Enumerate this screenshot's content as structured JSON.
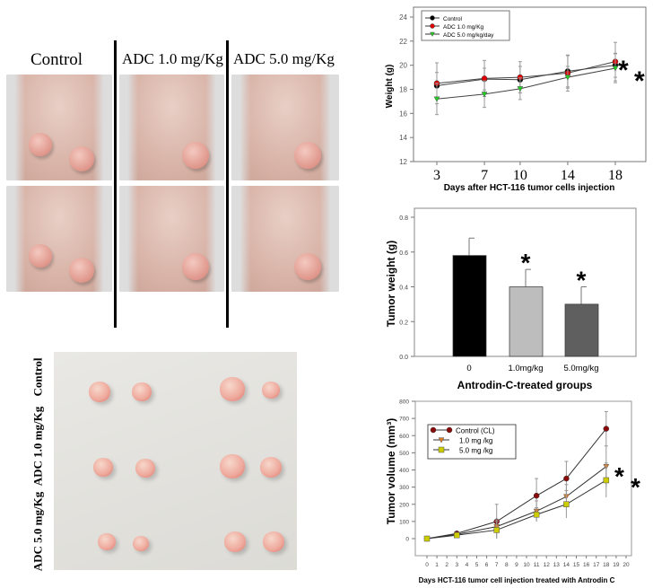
{
  "mouse_photos": {
    "columns": [
      "Control",
      "ADC 1.0 mg/Kg",
      "ADC 5.0 mg/Kg"
    ]
  },
  "tumor_photo": {
    "row_labels": [
      "Control",
      "ADC 1.0 mg/Kg",
      "ADC 5.0 mg/Kg"
    ]
  },
  "chart_data": [
    {
      "type": "line",
      "xlabel": "Days after HCT-116 tumor cells injection",
      "ylabel": "Weight  (g)",
      "x": [
        3,
        7,
        10,
        14,
        18
      ],
      "ylim": [
        12,
        24
      ],
      "yticks": [
        12,
        14,
        16,
        18,
        20,
        22,
        24
      ],
      "legend": "top-left",
      "annotations": [
        "*",
        "*"
      ],
      "series": [
        {
          "name": "Control",
          "color": "#000000",
          "marker": "circle",
          "values": [
            18.3,
            18.85,
            18.8,
            19.5,
            20.0
          ],
          "errors": [
            1.1,
            0.9,
            1.1,
            1.3,
            1.0
          ]
        },
        {
          "name": "ADC 1.0 mg/Kg",
          "color": "#e00000",
          "marker": "circle",
          "values": [
            18.5,
            18.9,
            19.0,
            19.35,
            20.3
          ],
          "errors": [
            1.7,
            1.5,
            1.3,
            1.5,
            1.6
          ]
        },
        {
          "name": "ADC 5.0 mg/kg/day",
          "color": "#22cc22",
          "marker": "triangle-down",
          "values": [
            17.2,
            17.6,
            18.05,
            19.0,
            19.75
          ],
          "errors": [
            1.3,
            1.1,
            0.9,
            0.9,
            1.2
          ]
        }
      ]
    },
    {
      "type": "bar",
      "xlabel": "Antrodin-C-treated groups",
      "ylabel": "Tumor weight (g)",
      "categories": [
        "0",
        "1.0mg/kg",
        "5.0mg/kg"
      ],
      "values": [
        0.58,
        0.4,
        0.3
      ],
      "errors": [
        0.1,
        0.1,
        0.1
      ],
      "colors": [
        "#000000",
        "#bdbdbd",
        "#5f5f5f"
      ],
      "ylim": [
        0,
        0.8
      ],
      "yticks": [
        "0.0",
        "0.2",
        "0.4",
        "0.6",
        "0.8"
      ],
      "annotations": [
        "",
        "*",
        "*"
      ]
    },
    {
      "type": "line",
      "xlabel": "Days HCT-116 tumor cell injection treated with Antrodin C",
      "ylabel": "Tumor volume (mm³)",
      "x": [
        0,
        3,
        7,
        11,
        14,
        18
      ],
      "xlim": [
        0,
        20
      ],
      "ylim": [
        0,
        800
      ],
      "yticks": [
        0,
        100,
        200,
        300,
        400,
        500,
        600,
        700,
        800
      ],
      "legend": "top-left",
      "annotations": [
        "*",
        "*"
      ],
      "series": [
        {
          "name": "Control (CL)",
          "color": "#8b0a0a",
          "marker": "circle",
          "values": [
            0,
            30,
            100,
            250,
            350,
            640
          ],
          "errors": [
            0,
            10,
            100,
            100,
            100,
            100
          ]
        },
        {
          "name": "1.0 mg /kg",
          "color": "#e07a20",
          "marker": "triangle-down",
          "values": [
            0,
            25,
            70,
            160,
            245,
            420
          ],
          "errors": [
            0,
            8,
            40,
            60,
            70,
            120
          ]
        },
        {
          "name": "5.0 mg /kg",
          "color": "#cccc00",
          "marker": "square",
          "values": [
            0,
            20,
            50,
            140,
            200,
            340
          ],
          "errors": [
            0,
            8,
            50,
            40,
            80,
            100
          ]
        }
      ]
    }
  ]
}
